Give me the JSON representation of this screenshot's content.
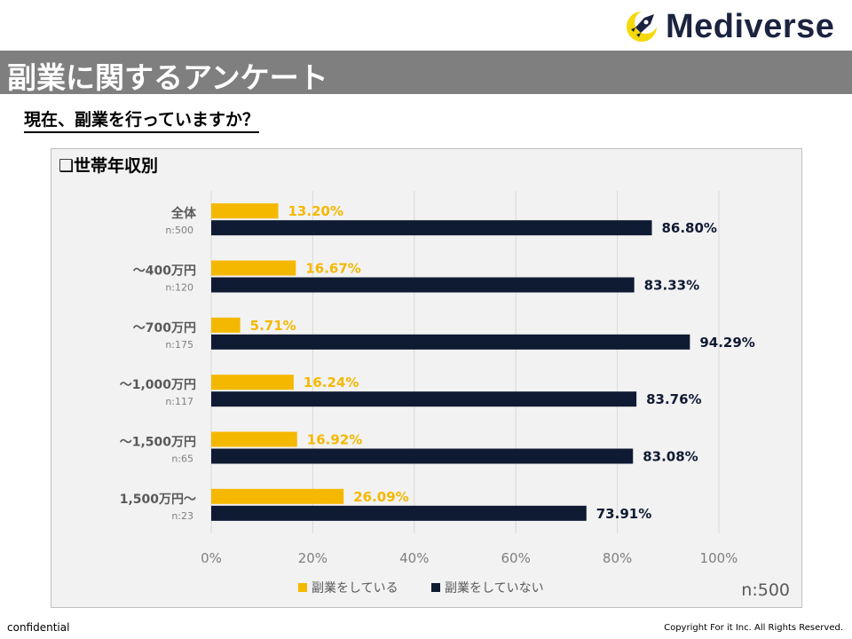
{
  "brand": {
    "name": "Mediverse",
    "accent": "#f5d90a",
    "dark": "#1b2340"
  },
  "header": {
    "title": "副業に関するアンケート"
  },
  "question": "現在、副業を行っていますか？",
  "footer": {
    "confidential": "confidential",
    "copyright": "Copyright For it Inc. All Rights Reserved."
  },
  "chart_data": {
    "type": "bar",
    "orientation": "horizontal",
    "title": "❑世帯年収別",
    "categories": [
      "全体",
      "～400万円",
      "～700万円",
      "～1,000万円",
      "～1,500万円",
      "1,500万円～"
    ],
    "category_n": [
      "n:500",
      "n:120",
      "n:175",
      "n:117",
      "n:65",
      "n:23"
    ],
    "series": [
      {
        "name": "副業をしている",
        "color": "#f5b800",
        "values": [
          13.2,
          16.67,
          5.71,
          16.24,
          16.92,
          26.09
        ],
        "labels": [
          "13.20%",
          "16.67%",
          "5.71%",
          "16.24%",
          "16.92%",
          "26.09%"
        ]
      },
      {
        "name": "副業をしていない",
        "color": "#0f1a33",
        "values": [
          86.8,
          83.33,
          94.29,
          83.76,
          83.08,
          73.91
        ],
        "labels": [
          "86.80%",
          "83.33%",
          "94.29%",
          "83.76%",
          "83.08%",
          "73.91%"
        ]
      }
    ],
    "xlim": [
      0,
      100
    ],
    "xticks": [
      0,
      20,
      40,
      60,
      80,
      100
    ],
    "xtick_labels": [
      "0%",
      "20%",
      "40%",
      "60%",
      "80%",
      "100%"
    ],
    "grid": true,
    "legend_position": "bottom",
    "sample_note": "n:500"
  }
}
